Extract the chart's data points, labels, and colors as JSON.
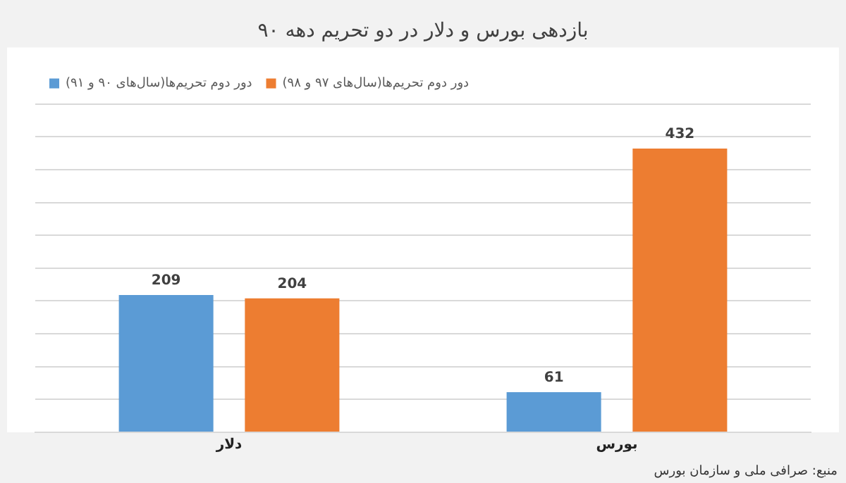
{
  "chart_data": {
    "type": "bar",
    "title": "بازدهی بورس و دلار در دو تحریم دهه ۹۰",
    "categories": [
      "دلار",
      "بورس"
    ],
    "series": [
      {
        "name": "دور دوم تحریم‌ها(سال‌های ۹۰ و ۹۱)",
        "color": "#5b9bd5",
        "values": [
          209,
          61
        ]
      },
      {
        "name": "دور دوم تحریم‌ها(سال‌های ۹۷ و ۹۸)",
        "color": "#ed7d31",
        "values": [
          204,
          432
        ]
      }
    ],
    "ylim": [
      0,
      500
    ],
    "yticks": [
      {
        "value": 0,
        "label": null
      },
      {
        "value": 50,
        "label": null
      },
      {
        "value": 100,
        "label": null
      },
      {
        "value": 150,
        "label": null
      },
      {
        "value": 200,
        "label": null
      },
      {
        "value": 250,
        "label": null
      },
      {
        "value": 300,
        "label": null
      },
      {
        "value": 350,
        "label": null
      },
      {
        "value": 400,
        "label": null
      },
      {
        "value": 450,
        "label": null
      },
      {
        "value": 500,
        "label": null
      }
    ],
    "grid": "y",
    "legend": "top left",
    "data_labels": true,
    "tick_labels": "x",
    "annotations": [
      "منبع: صرافی ملی و سازمان بورس"
    ]
  }
}
